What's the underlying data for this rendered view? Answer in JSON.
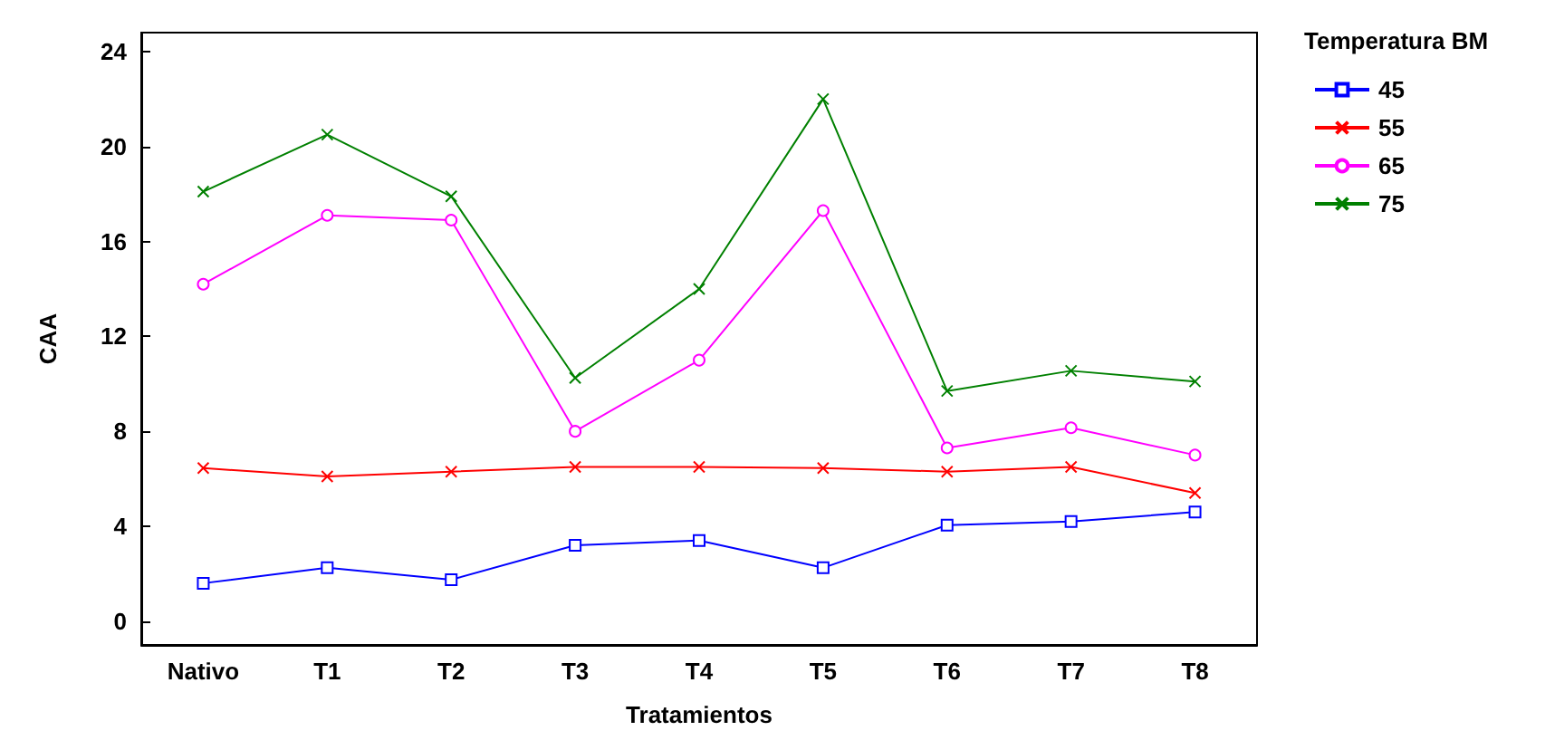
{
  "chart_data": {
    "type": "line",
    "xlabel": "Tratamientos",
    "ylabel": "CAA",
    "legend_title": "Temperatura BM",
    "categories": [
      "Nativo",
      "T1",
      "T2",
      "T3",
      "T4",
      "T5",
      "T6",
      "T7",
      "T8"
    ],
    "series": [
      {
        "name": "45",
        "color": "#0000ff",
        "marker": "square",
        "values": [
          1.6,
          2.25,
          1.75,
          3.2,
          3.4,
          2.25,
          4.05,
          4.2,
          4.6
        ]
      },
      {
        "name": "55",
        "color": "#ff0000",
        "marker": "cross",
        "values": [
          6.45,
          6.1,
          6.3,
          6.5,
          6.5,
          6.45,
          6.3,
          6.5,
          5.4
        ]
      },
      {
        "name": "65",
        "color": "#ff00ff",
        "marker": "circle",
        "values": [
          14.2,
          17.1,
          16.9,
          8.0,
          11.0,
          17.3,
          7.3,
          8.15,
          7.0
        ]
      },
      {
        "name": "75",
        "color": "#008000",
        "marker": "cross",
        "values": [
          18.1,
          20.5,
          17.9,
          10.25,
          14.0,
          22.0,
          9.7,
          10.55,
          10.1
        ]
      }
    ],
    "ylim": [
      -1,
      24.8
    ],
    "yticks": [
      0,
      4,
      8,
      12,
      16,
      20,
      24
    ],
    "grid": false,
    "legend": "top right",
    "line_style": "solid"
  }
}
